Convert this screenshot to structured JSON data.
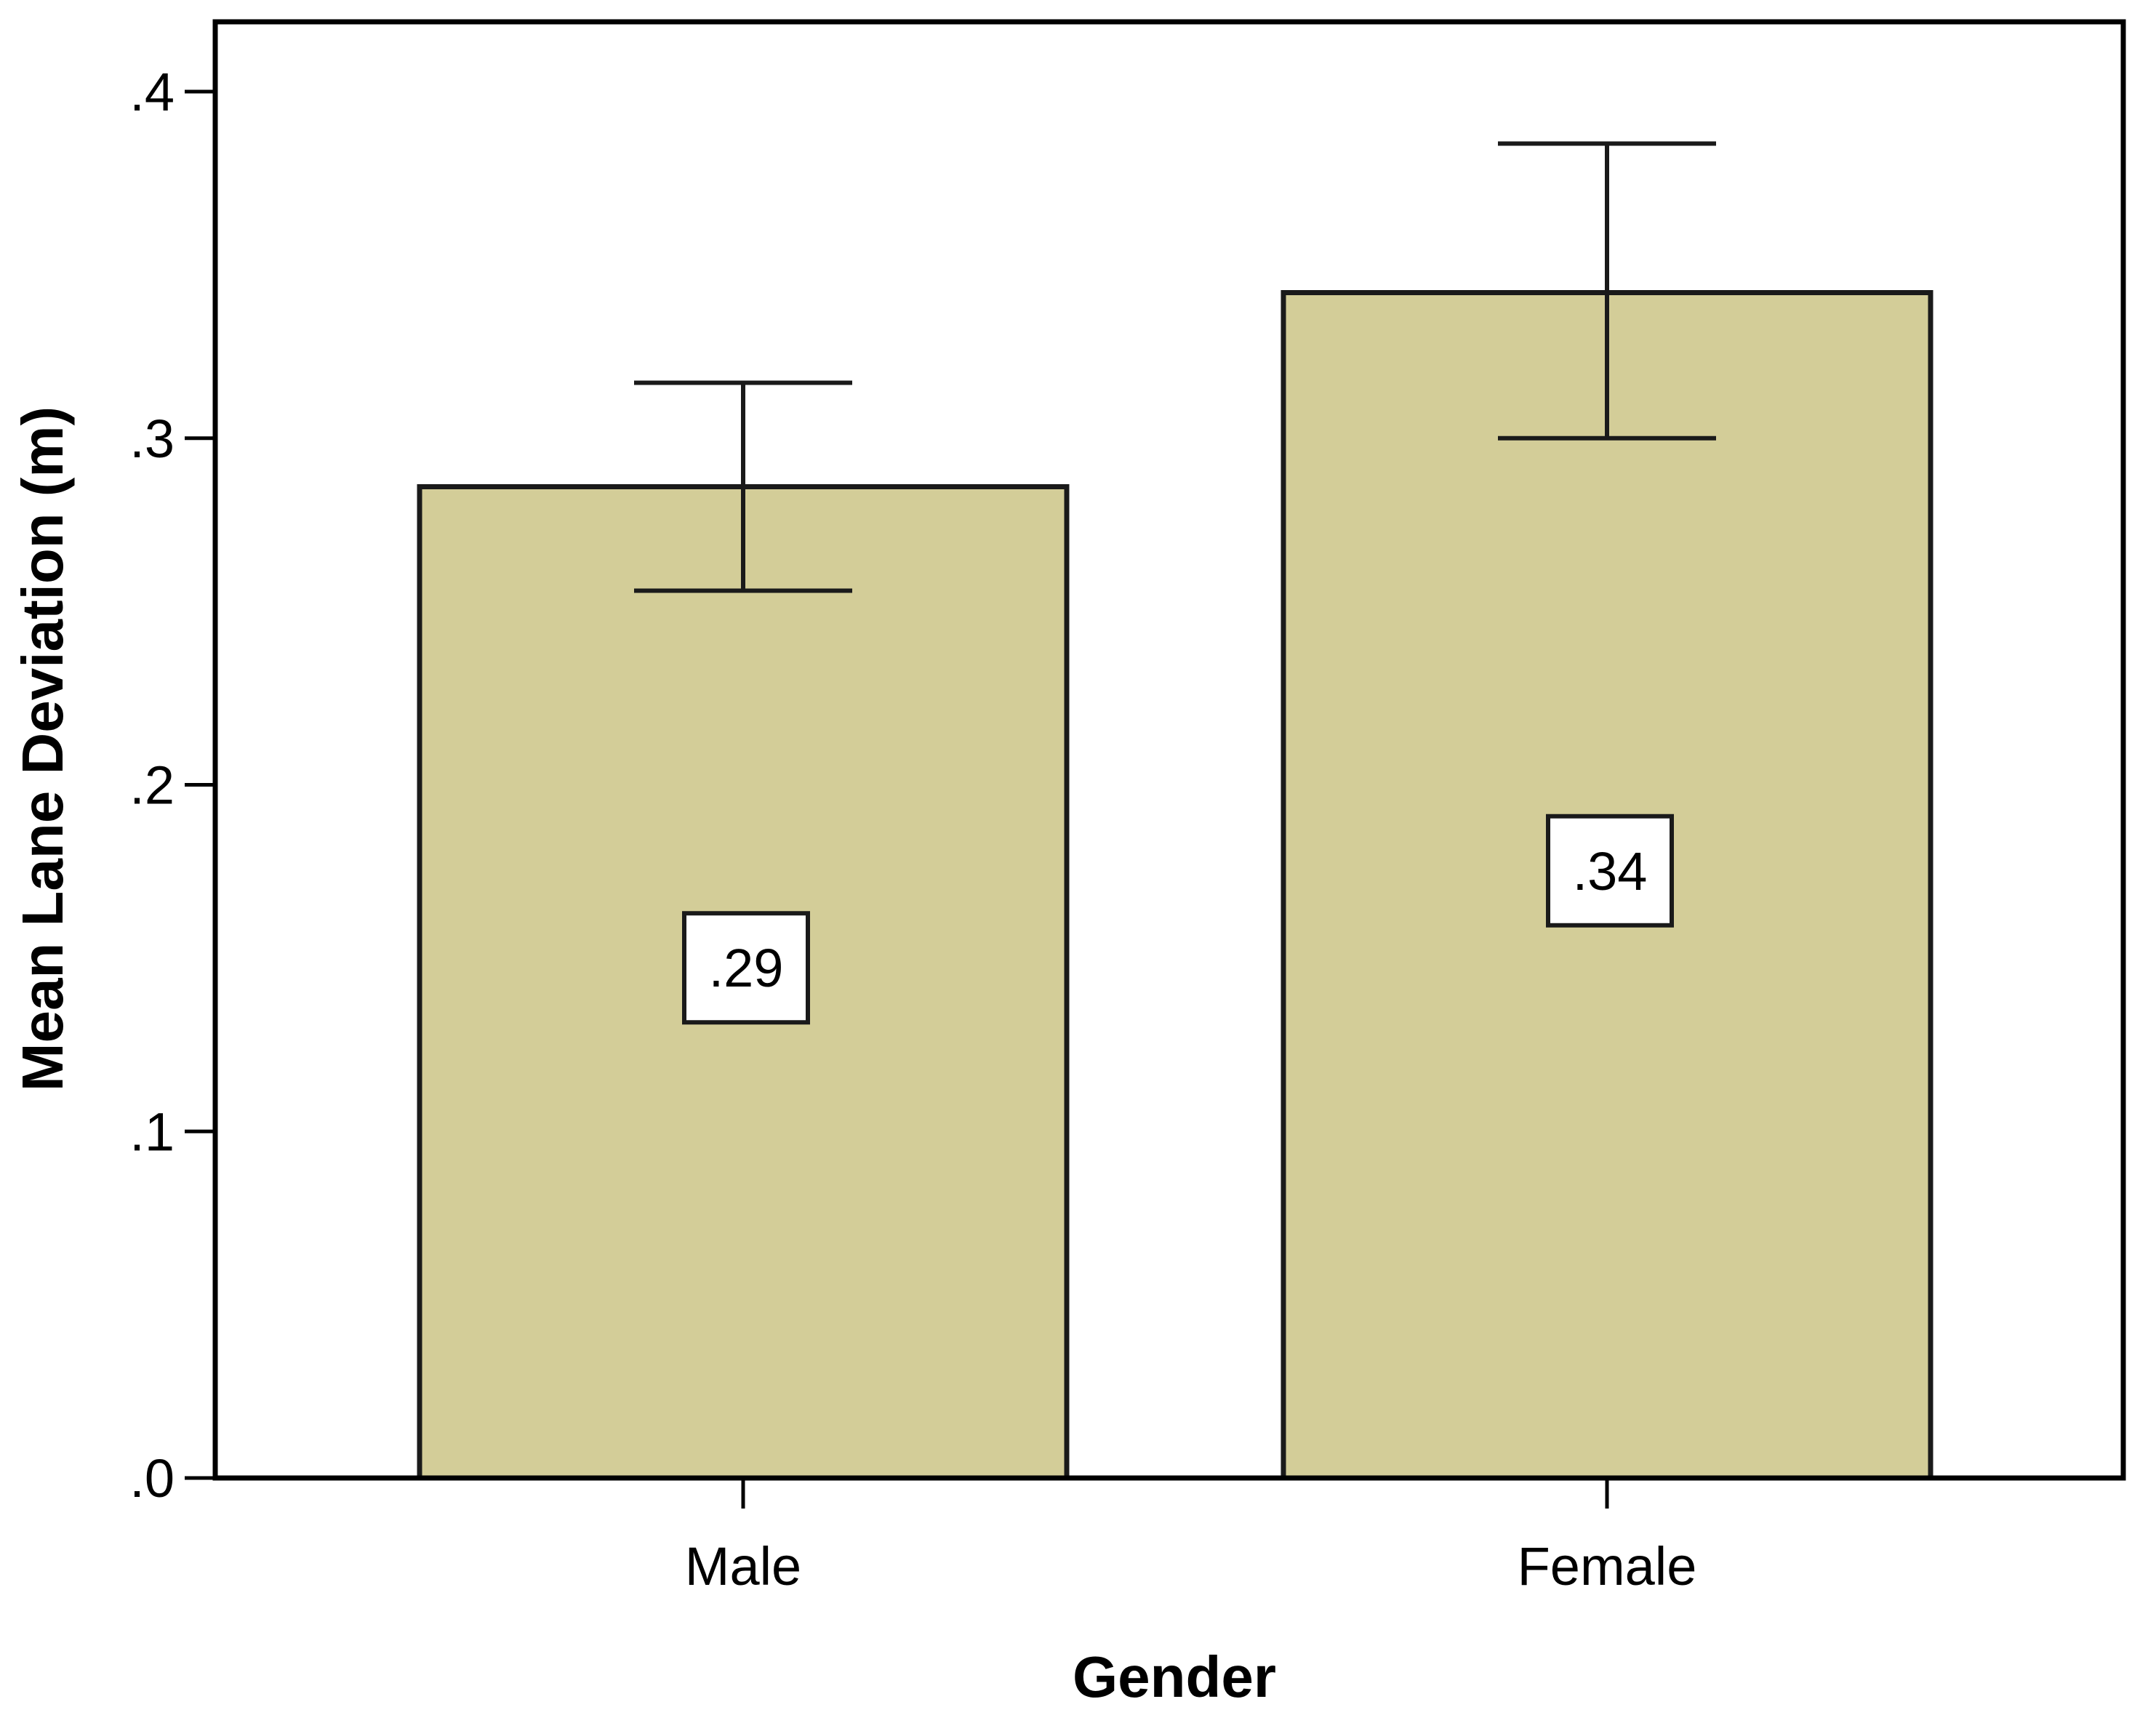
{
  "chart_data": {
    "type": "bar",
    "title": "",
    "xlabel": "Gender",
    "ylabel": "Mean Lane Deviation (m)",
    "categories": [
      "Male",
      "Female"
    ],
    "values": [
      0.286,
      0.342
    ],
    "data_labels": [
      ".29",
      ".34"
    ],
    "error_bars": [
      {
        "lower": 0.256,
        "upper": 0.316
      },
      {
        "lower": 0.3,
        "upper": 0.385
      }
    ],
    "ylim": [
      0,
      0.42
    ],
    "yticks": [
      0,
      0.1,
      0.2,
      0.3,
      0.4
    ],
    "ytick_labels": [
      ".0",
      ".1",
      ".2",
      ".3",
      ".4"
    ],
    "grid": false,
    "legend": "none",
    "colors": {
      "bar_fill": "#d3cd98",
      "bar_stroke": "#1a1a1a",
      "error_bar": "#1a1a1a",
      "frame": "#000000",
      "label_box_fill": "#ffffff"
    }
  }
}
